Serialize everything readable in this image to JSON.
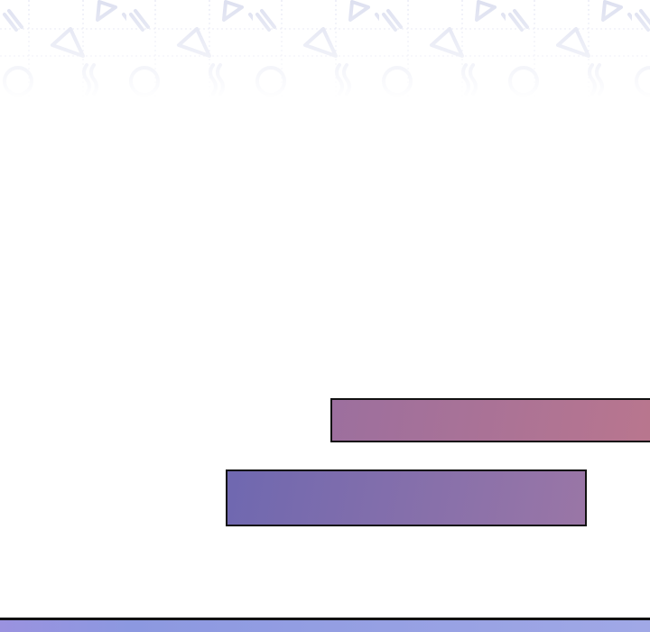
{
  "colors": {
    "box_top_start": "#9c6f9e",
    "box_top_end": "#b9768e",
    "box_bottom_start": "#6f68b0",
    "box_bottom_end": "#9a76a6",
    "bottom_panel": "#949ae0",
    "pattern_stroke": "#dde0f0"
  },
  "decor": {
    "pattern_icons": [
      "triangle-icon",
      "motion-lines-icon",
      "circle-icon",
      "wavy-lines-icon"
    ]
  }
}
